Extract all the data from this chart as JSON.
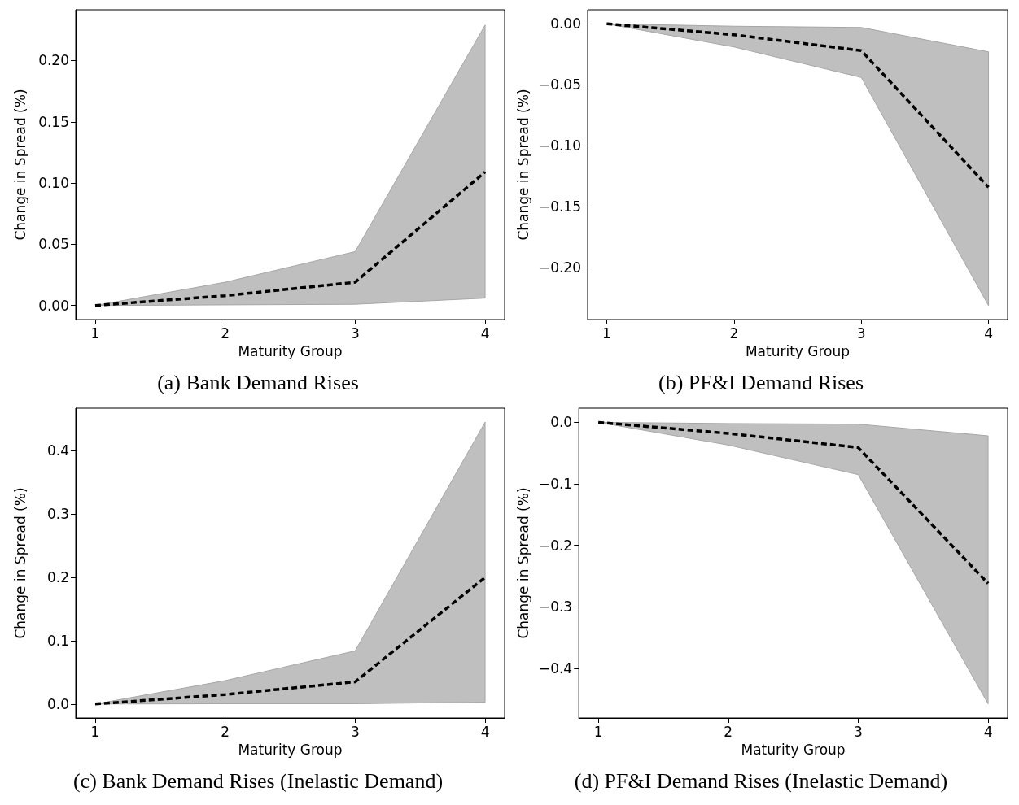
{
  "chart_data": [
    {
      "type": "line",
      "title": "(a) Bank Demand Rises",
      "xlabel": "Maturity Group",
      "ylabel": "Change in Spread (%)",
      "x": [
        1,
        2,
        3,
        4
      ],
      "xlim": [
        0.85,
        4.15
      ],
      "xticks": [
        1,
        2,
        3,
        4
      ],
      "ylim": [
        -0.0115,
        0.2415
      ],
      "yticks": [
        {
          "value": 0,
          "label": "0.00"
        },
        {
          "value": 0.05,
          "label": "0.05"
        },
        {
          "value": 0.1,
          "label": "0.10"
        },
        {
          "value": 0.15,
          "label": "0.15"
        },
        {
          "value": 0.2,
          "label": "0.20"
        }
      ],
      "grid": false,
      "marker": "none",
      "line_style": "dashed",
      "series": [
        {
          "color": "#000000",
          "values": [
            0,
            0.008,
            0.019,
            0.109
          ],
          "lower": [
            0,
            0.0005,
            0.001,
            0.006
          ],
          "upper": [
            0,
            0.019,
            0.044,
            0.229
          ]
        }
      ]
    },
    {
      "type": "line",
      "title": "(b) PF&I Demand Rises",
      "xlabel": "Maturity Group",
      "ylabel": "Change in Spread (%)",
      "x": [
        1,
        2,
        3,
        4
      ],
      "xlim": [
        0.85,
        4.15
      ],
      "xticks": [
        1,
        2,
        3,
        4
      ],
      "ylim": [
        -0.2425,
        0.0115
      ],
      "yticks": [
        {
          "value": -0.2,
          "label": "−0.20"
        },
        {
          "value": -0.15,
          "label": "−0.15"
        },
        {
          "value": -0.1,
          "label": "−0.10"
        },
        {
          "value": -0.05,
          "label": "−0.05"
        },
        {
          "value": 0,
          "label": "0.00"
        }
      ],
      "grid": false,
      "marker": "none",
      "line_style": "dashed",
      "series": [
        {
          "color": "#000000",
          "values": [
            0,
            -0.009,
            -0.022,
            -0.134
          ],
          "lower": [
            0,
            -0.019,
            -0.044,
            -0.231
          ],
          "upper": [
            0,
            -0.002,
            -0.003,
            -0.023
          ]
        }
      ]
    },
    {
      "type": "line",
      "title": "(c) Bank Demand Rises (Inelastic Demand)",
      "xlabel": "Maturity Group",
      "ylabel": "Change in Spread (%)",
      "x": [
        1,
        2,
        3,
        4
      ],
      "xlim": [
        0.85,
        4.15
      ],
      "xticks": [
        1,
        2,
        3,
        4
      ],
      "ylim": [
        -0.022,
        0.467
      ],
      "yticks": [
        {
          "value": 0,
          "label": "0.0"
        },
        {
          "value": 0.1,
          "label": "0.1"
        },
        {
          "value": 0.2,
          "label": "0.2"
        },
        {
          "value": 0.3,
          "label": "0.3"
        },
        {
          "value": 0.4,
          "label": "0.4"
        }
      ],
      "grid": false,
      "marker": "none",
      "line_style": "dashed",
      "series": [
        {
          "color": "#000000",
          "values": [
            0,
            0.015,
            0.035,
            0.2
          ],
          "lower": [
            0,
            0.0005,
            0.0005,
            0.003
          ],
          "upper": [
            0,
            0.037,
            0.084,
            0.445
          ]
        }
      ]
    },
    {
      "type": "line",
      "title": "(d) PF&I Demand Rises (Inelastic Demand)",
      "xlabel": "Maturity Group",
      "ylabel": "Change in Spread (%)",
      "x": [
        1,
        2,
        3,
        4
      ],
      "xlim": [
        0.85,
        4.15
      ],
      "xticks": [
        1,
        2,
        3,
        4
      ],
      "ylim": [
        -0.481,
        0.023
      ],
      "yticks": [
        {
          "value": -0.4,
          "label": "−0.4"
        },
        {
          "value": -0.3,
          "label": "−0.3"
        },
        {
          "value": -0.2,
          "label": "−0.2"
        },
        {
          "value": -0.1,
          "label": "−0.1"
        },
        {
          "value": 0,
          "label": "0.0"
        }
      ],
      "grid": false,
      "marker": "none",
      "line_style": "dashed",
      "series": [
        {
          "color": "#000000",
          "values": [
            0,
            -0.018,
            -0.041,
            -0.262
          ],
          "lower": [
            0,
            -0.037,
            -0.085,
            -0.458
          ],
          "upper": [
            0,
            -0.002,
            -0.003,
            -0.022
          ]
        }
      ]
    }
  ]
}
